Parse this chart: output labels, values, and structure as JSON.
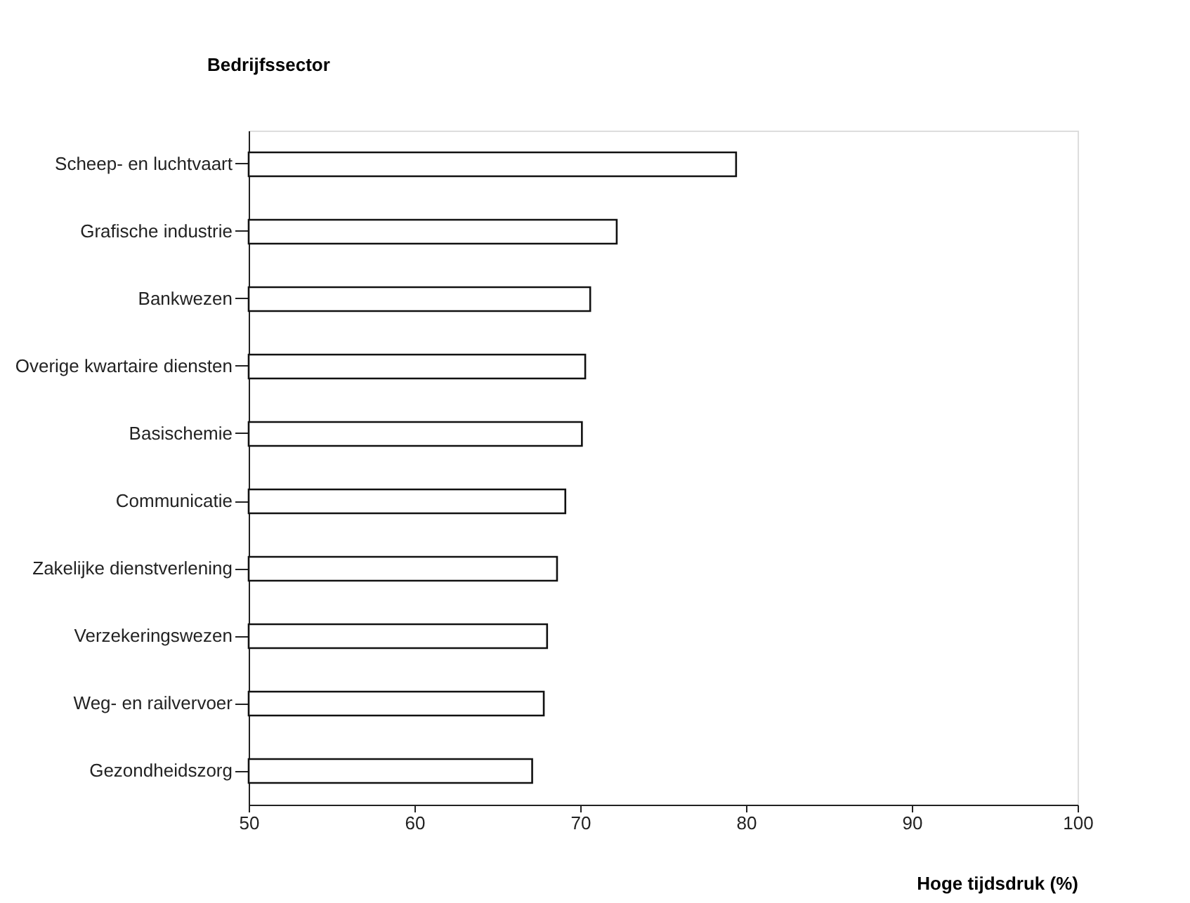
{
  "chart_data": {
    "type": "bar",
    "orientation": "horizontal",
    "xlabel": "Hoge tijdsdruk (%)",
    "ylabel": "Bedrijfssector",
    "categories": [
      "Scheep- en luchtvaart",
      "Grafische industrie",
      "Bankwezen",
      "Overige kwartaire diensten",
      "Basischemie",
      "Communicatie",
      "Zakelijke dienstverlening",
      "Verzekeringswezen",
      "Weg- en railvervoer",
      "Gezondheidszorg"
    ],
    "values": [
      79.4,
      72.2,
      70.6,
      70.3,
      70.1,
      69.1,
      68.6,
      68.0,
      67.8,
      67.1
    ],
    "color": "#ffffff",
    "xlim": [
      50,
      100
    ],
    "xticks": [
      50,
      60,
      70,
      80,
      90,
      100
    ],
    "grid": false
  }
}
